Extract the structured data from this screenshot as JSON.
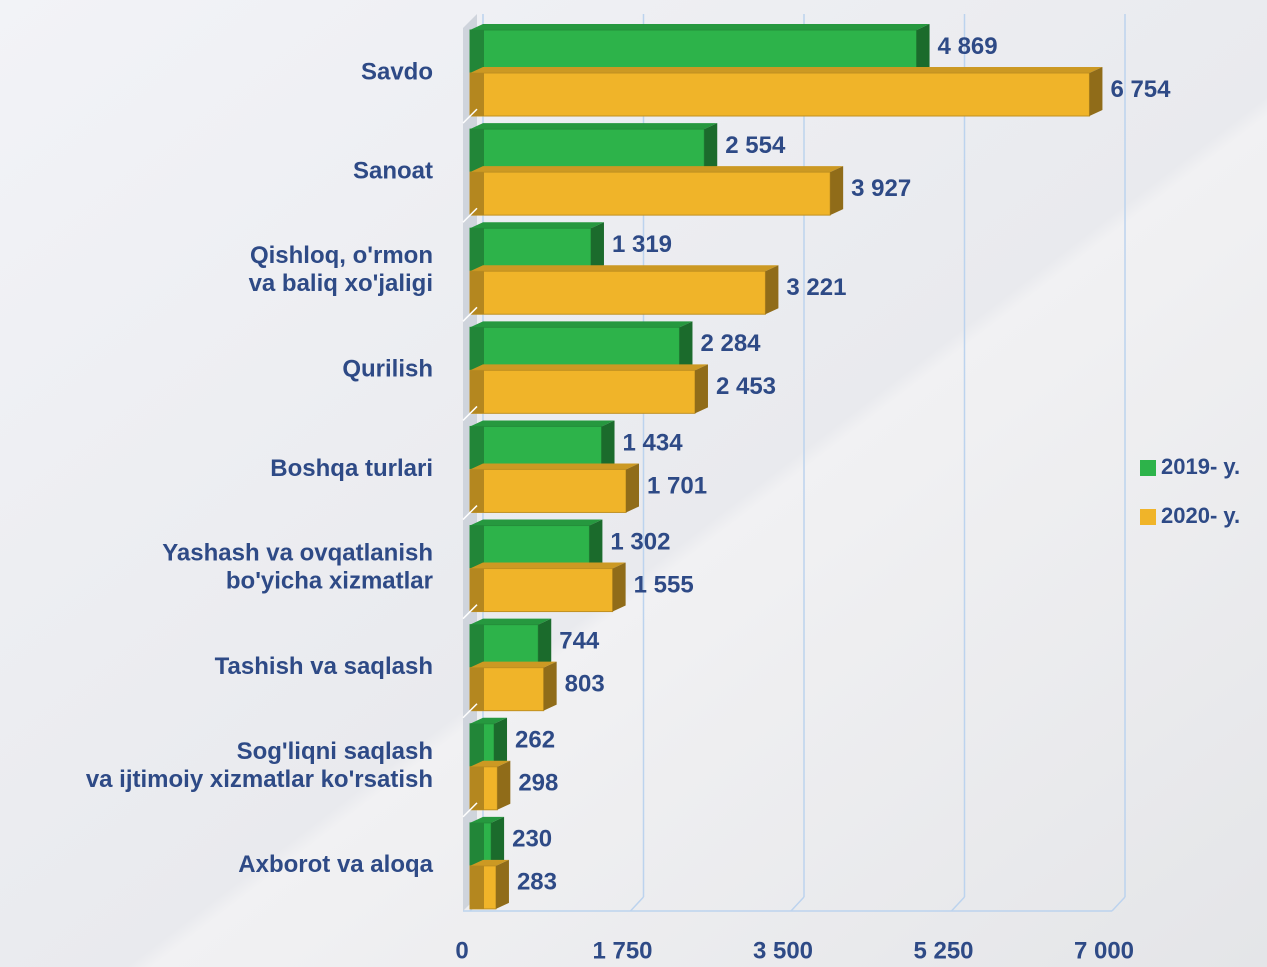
{
  "chart_data": {
    "type": "bar",
    "orientation": "horizontal",
    "categories": [
      "Savdo",
      "Sanoat",
      "Qishloq, o'rmon\nva baliq xo'jaligi",
      "Qurilish",
      "Boshqa turlari",
      "Yashash va ovqatlanish\nbo'yicha xizmatlar",
      "Tashish va saqlash",
      "Sog'liqni saqlash\nva ijtimoiy xizmatlar ko'rsatish",
      "Axborot va aloqa"
    ],
    "series": [
      {
        "name": "2019- y.",
        "color": "#2db34a",
        "values": [
          4869,
          2554,
          1319,
          2284,
          1434,
          1302,
          744,
          262,
          230
        ],
        "value_labels": [
          "4 869",
          "2 554",
          "1 319",
          "2 284",
          "1 434",
          "1 302",
          "744",
          "262",
          "230"
        ]
      },
      {
        "name": "2020- y.",
        "color": "#f0b429",
        "values": [
          6754,
          3927,
          3221,
          2453,
          1701,
          1555,
          803,
          298,
          283
        ],
        "value_labels": [
          "6 754",
          "3 927",
          "3 221",
          "2 453",
          "1 701",
          "1 555",
          "803",
          "298",
          "283"
        ]
      }
    ],
    "xlim": [
      0,
      7000
    ],
    "xticks": [
      0,
      {
        "value": 1750,
        "label": "1 750"
      },
      {
        "value": 3500,
        "label": "3 500"
      },
      {
        "value": 5250,
        "label": "5 250"
      },
      {
        "value": 7000,
        "label": "7 000"
      }
    ],
    "grid": true,
    "legend": "right"
  }
}
